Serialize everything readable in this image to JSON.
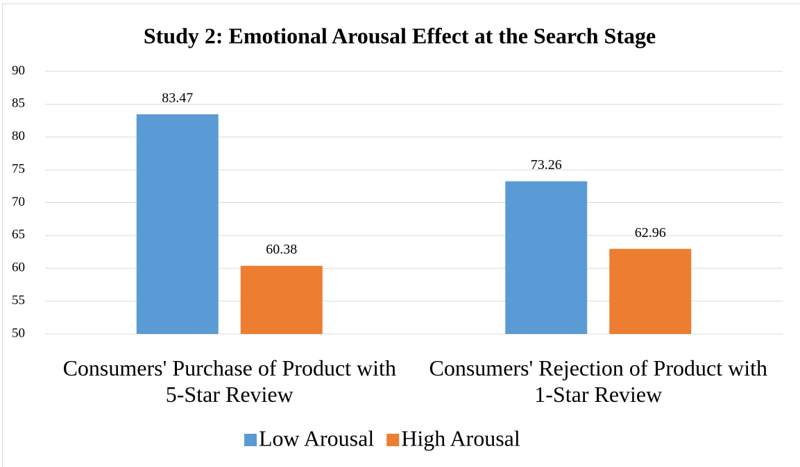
{
  "chart_data": {
    "type": "bar",
    "title": "Study 2: Emotional Arousal Effect at the Search Stage",
    "categories": [
      "Consumers' Purchase of Product with 5-Star Review",
      "Consumers' Rejection of Product with 1-Star Review"
    ],
    "series": [
      {
        "name": "Low Arousal",
        "color": "#5b9bd5",
        "values": [
          83.47,
          73.26
        ]
      },
      {
        "name": "High Arousal",
        "color": "#ed7d31",
        "values": [
          60.38,
          62.96
        ]
      }
    ],
    "ylim": [
      50,
      90
    ],
    "yticks": [
      50,
      55,
      60,
      65,
      70,
      75,
      80,
      85,
      90
    ],
    "grid": true,
    "legend": "bottom"
  }
}
